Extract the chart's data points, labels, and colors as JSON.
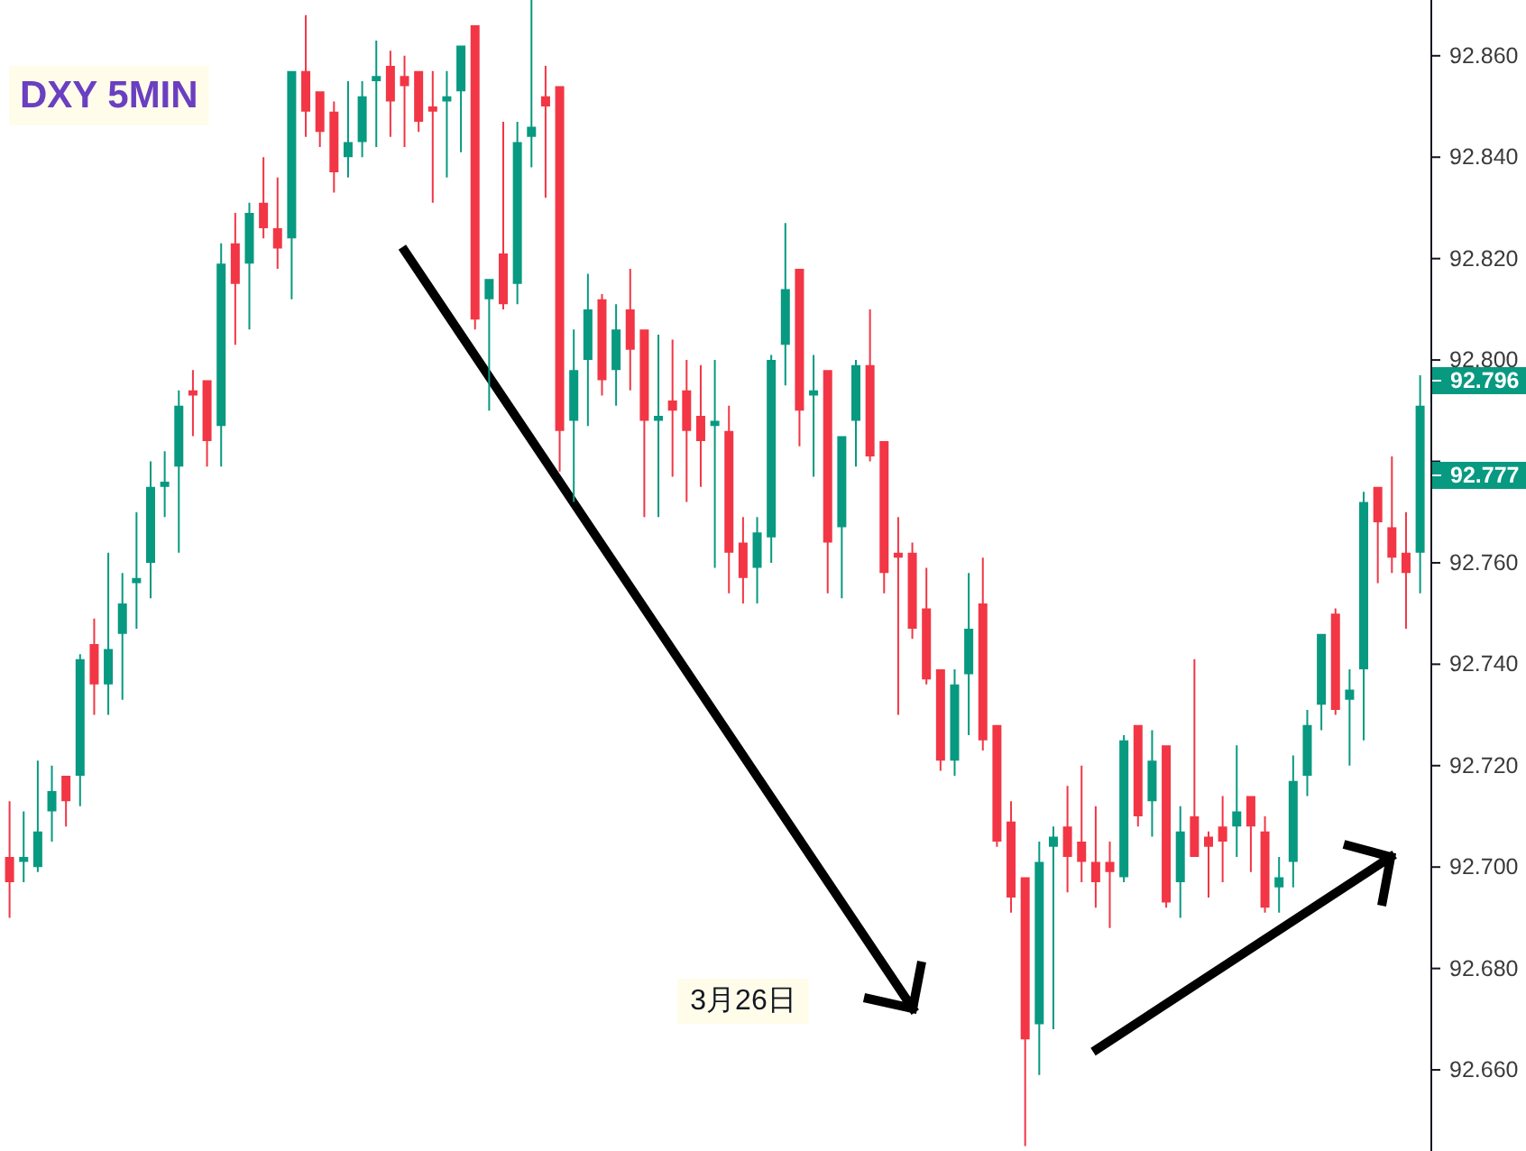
{
  "chart_data": {
    "type": "candlestick",
    "title": "DXY 5MIN",
    "annotations": [
      "3月26日",
      "92.796",
      "92.777"
    ],
    "categories": [
      null,
      null,
      null,
      null,
      null,
      null,
      null,
      null,
      null,
      null,
      null,
      null,
      null,
      null,
      null,
      null,
      null,
      null,
      null,
      null,
      null,
      null,
      null,
      null,
      null,
      null,
      null,
      null,
      null,
      null,
      null,
      null,
      null,
      null,
      null,
      null,
      null,
      null,
      null,
      null,
      null,
      null,
      null,
      null,
      null,
      null,
      null,
      null,
      null,
      null,
      null,
      null,
      null,
      null,
      null,
      null,
      null,
      null,
      null,
      null,
      null,
      null,
      null,
      null,
      null,
      null,
      null,
      null,
      null,
      null,
      null,
      null,
      null,
      null,
      null,
      null,
      null,
      null,
      null,
      null,
      null,
      null,
      null,
      null,
      null,
      null,
      null,
      null,
      null,
      null,
      null,
      null,
      null,
      null,
      null,
      null,
      null,
      null,
      null,
      null,
      null
    ],
    "ohlc": [
      [
        92.702,
        92.713,
        92.69,
        92.697
      ],
      [
        92.701,
        92.711,
        92.697,
        92.702
      ],
      [
        92.7,
        92.721,
        92.699,
        92.707
      ],
      [
        92.711,
        92.72,
        92.705,
        92.715
      ],
      [
        92.718,
        92.718,
        92.708,
        92.713
      ],
      [
        92.718,
        92.742,
        92.712,
        92.741
      ],
      [
        92.744,
        92.749,
        92.73,
        92.736
      ],
      [
        92.736,
        92.762,
        92.73,
        92.743
      ],
      [
        92.746,
        92.758,
        92.733,
        92.752
      ],
      [
        92.756,
        92.77,
        92.747,
        92.757
      ],
      [
        92.76,
        92.78,
        92.753,
        92.775
      ],
      [
        92.775,
        92.782,
        92.769,
        92.776
      ],
      [
        92.779,
        92.794,
        92.762,
        92.791
      ],
      [
        92.794,
        92.798,
        92.785,
        92.793
      ],
      [
        92.796,
        92.796,
        92.779,
        92.784
      ],
      [
        92.787,
        92.823,
        92.779,
        92.819
      ],
      [
        92.823,
        92.829,
        92.803,
        92.815
      ],
      [
        92.819,
        92.831,
        92.806,
        92.829
      ],
      [
        92.831,
        92.84,
        92.824,
        92.826
      ],
      [
        92.826,
        92.836,
        92.818,
        92.822
      ],
      [
        92.824,
        92.857,
        92.812,
        92.857
      ],
      [
        92.857,
        92.868,
        92.844,
        92.849
      ],
      [
        92.853,
        92.853,
        92.842,
        92.845
      ],
      [
        92.849,
        92.851,
        92.833,
        92.837
      ],
      [
        92.84,
        92.855,
        92.836,
        92.843
      ],
      [
        92.843,
        92.855,
        92.84,
        92.852
      ],
      [
        92.855,
        92.863,
        92.842,
        92.856
      ],
      [
        92.858,
        92.861,
        92.844,
        92.851
      ],
      [
        92.856,
        92.86,
        92.842,
        92.854
      ],
      [
        92.857,
        92.857,
        92.845,
        92.847
      ],
      [
        92.85,
        92.857,
        92.831,
        92.849
      ],
      [
        92.851,
        92.857,
        92.836,
        92.852
      ],
      [
        92.853,
        92.862,
        92.841,
        92.862
      ],
      [
        92.866,
        92.866,
        92.806,
        92.808
      ],
      [
        92.812,
        92.816,
        92.79,
        92.816
      ],
      [
        92.821,
        92.847,
        92.81,
        92.811
      ],
      [
        92.815,
        92.847,
        92.811,
        92.843
      ],
      [
        92.844,
        92.871,
        92.838,
        92.846
      ],
      [
        92.852,
        92.858,
        92.832,
        92.85
      ],
      [
        92.854,
        92.854,
        92.778,
        92.786
      ],
      [
        92.788,
        92.806,
        92.772,
        92.798
      ],
      [
        92.8,
        92.817,
        92.787,
        92.81
      ],
      [
        92.812,
        92.813,
        92.793,
        92.796
      ],
      [
        92.798,
        92.811,
        92.791,
        92.806
      ],
      [
        92.81,
        92.818,
        92.794,
        92.802
      ],
      [
        92.806,
        92.806,
        92.769,
        92.788
      ],
      [
        92.788,
        92.805,
        92.769,
        92.789
      ],
      [
        92.792,
        92.804,
        92.777,
        92.79
      ],
      [
        92.794,
        92.8,
        92.772,
        92.786
      ],
      [
        92.789,
        92.799,
        92.775,
        92.784
      ],
      [
        92.787,
        92.8,
        92.759,
        92.788
      ],
      [
        92.786,
        92.791,
        92.754,
        92.762
      ],
      [
        92.764,
        92.769,
        92.752,
        92.757
      ],
      [
        92.759,
        92.769,
        92.752,
        92.766
      ],
      [
        92.765,
        92.801,
        92.76,
        92.8
      ],
      [
        92.803,
        92.827,
        92.795,
        92.814
      ],
      [
        92.818,
        92.818,
        92.783,
        92.79
      ],
      [
        92.793,
        92.801,
        92.777,
        92.794
      ],
      [
        92.798,
        92.798,
        92.754,
        92.764
      ],
      [
        92.767,
        92.785,
        92.753,
        92.785
      ],
      [
        92.788,
        92.8,
        92.779,
        92.799
      ],
      [
        92.799,
        92.81,
        92.78,
        92.781
      ],
      [
        92.784,
        92.784,
        92.754,
        92.758
      ],
      [
        92.762,
        92.769,
        92.73,
        92.761
      ],
      [
        92.762,
        92.764,
        92.745,
        92.747
      ],
      [
        92.751,
        92.759,
        92.736,
        92.737
      ],
      [
        92.739,
        92.739,
        92.719,
        92.721
      ],
      [
        92.721,
        92.739,
        92.718,
        92.736
      ],
      [
        92.738,
        92.758,
        92.726,
        92.747
      ],
      [
        92.752,
        92.761,
        92.723,
        92.725
      ],
      [
        92.728,
        92.728,
        92.704,
        92.705
      ],
      [
        92.709,
        92.713,
        92.691,
        92.694
      ],
      [
        92.698,
        92.698,
        92.645,
        92.666
      ],
      [
        92.669,
        92.705,
        92.659,
        92.701
      ],
      [
        92.704,
        92.708,
        92.668,
        92.706
      ],
      [
        92.708,
        92.716,
        92.695,
        92.702
      ],
      [
        92.705,
        92.72,
        92.697,
        92.701
      ],
      [
        92.701,
        92.712,
        92.692,
        92.697
      ],
      [
        92.701,
        92.705,
        92.688,
        92.699
      ],
      [
        92.698,
        92.726,
        92.697,
        92.725
      ],
      [
        92.728,
        92.728,
        92.708,
        92.71
      ],
      [
        92.713,
        92.727,
        92.706,
        92.721
      ],
      [
        92.724,
        92.724,
        92.692,
        92.693
      ],
      [
        92.697,
        92.712,
        92.69,
        92.707
      ],
      [
        92.71,
        92.741,
        92.702,
        92.702
      ],
      [
        92.706,
        92.707,
        92.694,
        92.704
      ],
      [
        92.708,
        92.714,
        92.697,
        92.705
      ],
      [
        92.708,
        92.724,
        92.702,
        92.711
      ],
      [
        92.714,
        92.714,
        92.699,
        92.708
      ],
      [
        92.707,
        92.71,
        92.691,
        92.692
      ],
      [
        92.696,
        92.702,
        92.691,
        92.698
      ],
      [
        92.701,
        92.722,
        92.696,
        92.717
      ],
      [
        92.718,
        92.731,
        92.714,
        92.728
      ],
      [
        92.732,
        92.746,
        92.727,
        92.746
      ],
      [
        92.75,
        92.751,
        92.73,
        92.731
      ],
      [
        92.733,
        92.739,
        92.72,
        92.735
      ],
      [
        92.739,
        92.774,
        92.725,
        92.772
      ],
      [
        92.775,
        92.775,
        92.756,
        92.768
      ],
      [
        92.767,
        92.781,
        92.758,
        92.761
      ],
      [
        92.762,
        92.77,
        92.747,
        92.758
      ],
      [
        92.762,
        92.797,
        92.754,
        92.791
      ]
    ],
    "colors": [
      "#f23645",
      "#089981",
      "#089981",
      "#089981",
      "#f23645",
      "#089981",
      "#f23645",
      "#089981",
      "#089981",
      "#089981",
      "#089981",
      "#089981",
      "#089981",
      "#f23645",
      "#f23645",
      "#089981",
      "#f23645",
      "#089981",
      "#f23645",
      "#f23645",
      "#089981",
      "#f23645",
      "#f23645",
      "#f23645",
      "#089981",
      "#089981",
      "#089981",
      "#f23645",
      "#f23645",
      "#f23645",
      "#f23645",
      "#089981",
      "#089981",
      "#f23645",
      "#089981",
      "#f23645",
      "#089981",
      "#089981",
      "#f23645",
      "#f23645",
      "#089981",
      "#089981",
      "#f23645",
      "#089981",
      "#f23645",
      "#f23645",
      "#089981",
      "#f23645",
      "#f23645",
      "#f23645",
      "#089981",
      "#f23645",
      "#f23645",
      "#089981",
      "#089981",
      "#089981",
      "#f23645",
      "#089981",
      "#f23645",
      "#089981",
      "#089981",
      "#f23645",
      "#f23645",
      "#f23645",
      "#f23645",
      "#f23645",
      "#f23645",
      "#089981",
      "#089981",
      "#f23645",
      "#f23645",
      "#f23645",
      "#f23645",
      "#089981",
      "#089981",
      "#f23645",
      "#f23645",
      "#f23645",
      "#f23645",
      "#089981",
      "#f23645",
      "#089981",
      "#f23645",
      "#089981",
      "#f23645",
      "#f23645",
      "#f23645",
      "#089981",
      "#f23645",
      "#f23645",
      "#089981",
      "#089981",
      "#089981",
      "#089981",
      "#f23645",
      "#089981",
      "#089981",
      "#f23645",
      "#f23645",
      "#f23645",
      "#089981"
    ],
    "ylim": [
      92.644,
      92.871
    ],
    "yticks": [
      {
        "value": 92.66,
        "label": "92.660"
      },
      {
        "value": 92.68,
        "label": "92.680"
      },
      {
        "value": 92.7,
        "label": "92.700"
      },
      {
        "value": 92.72,
        "label": "92.720"
      },
      {
        "value": 92.74,
        "label": "92.740"
      },
      {
        "value": 92.76,
        "label": "92.760"
      },
      {
        "value": 92.78,
        "label": null
      },
      {
        "value": 92.8,
        "label": "92.800"
      },
      {
        "value": 92.82,
        "label": "92.820"
      },
      {
        "value": 92.84,
        "label": "92.840"
      },
      {
        "value": 92.86,
        "label": "92.860"
      }
    ],
    "tick_labels": "y"
  }
}
